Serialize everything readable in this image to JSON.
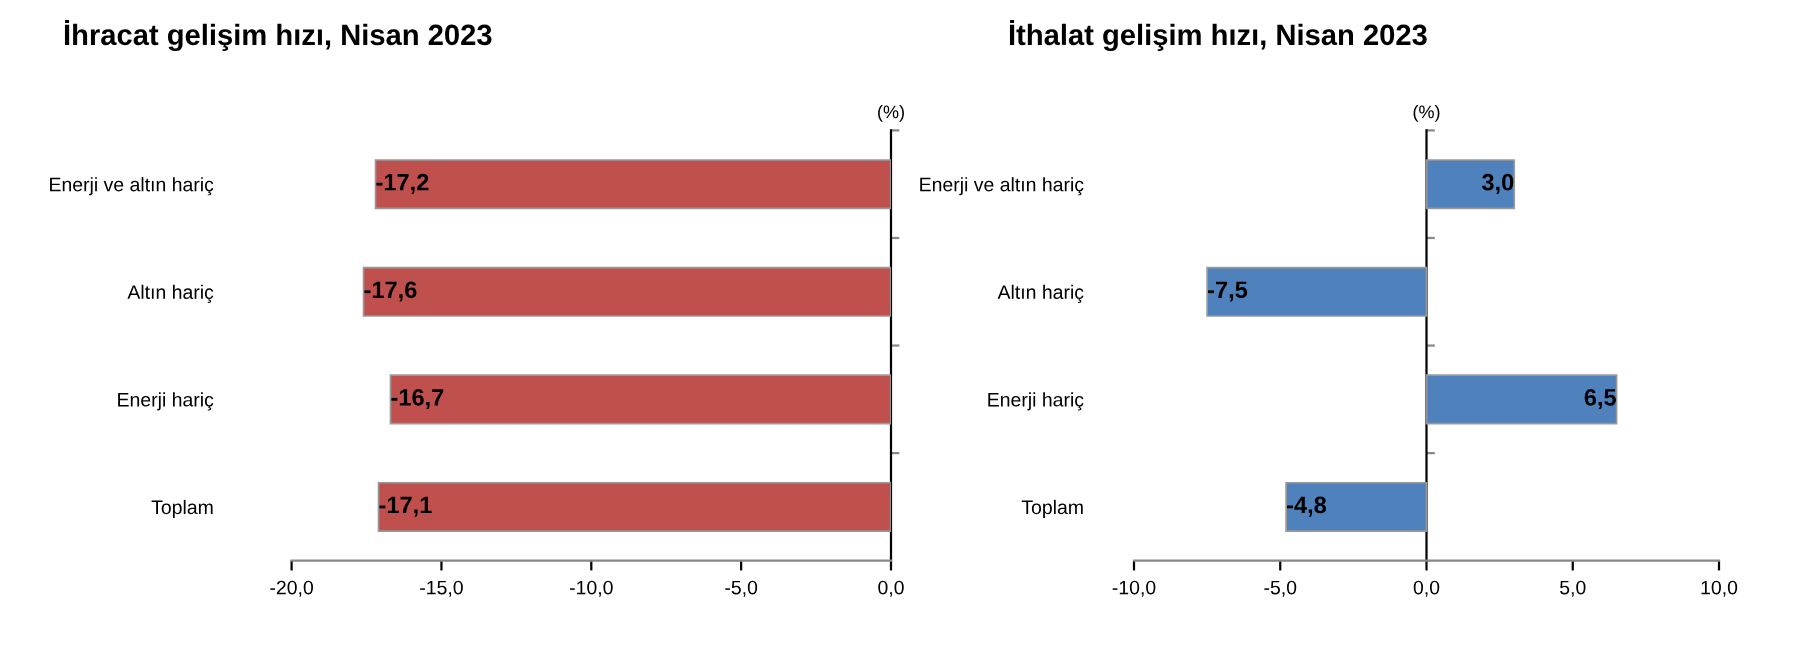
{
  "chart_data": [
    {
      "type": "bar",
      "orientation": "horizontal",
      "title": "İhracat gelişim hızı, Nisan 2023",
      "annotations": [
        "(%)"
      ],
      "categories": [
        "Enerji ve altın hariç",
        "Altın hariç",
        "Enerji hariç",
        "Toplam"
      ],
      "values": [
        -17.2,
        -17.6,
        -16.7,
        -17.1
      ],
      "value_labels": [
        "-17,2",
        "-17,6",
        "-16,7",
        "-17,1"
      ],
      "color": "#c0504d",
      "xlim": [
        -20,
        0
      ],
      "xticks": [
        {
          "value": -20,
          "label": "-20,0"
        },
        {
          "value": -15,
          "label": "-15,0"
        },
        {
          "value": -10,
          "label": "-10,0"
        },
        {
          "value": -5,
          "label": "-5,0"
        },
        {
          "value": 0,
          "label": "0,0"
        }
      ],
      "legend": false
    },
    {
      "type": "bar",
      "orientation": "horizontal",
      "title": "İthalat gelişim hızı, Nisan 2023",
      "annotations": [
        "(%)"
      ],
      "categories": [
        "Enerji ve altın hariç",
        "Altın hariç",
        "Enerji hariç",
        "Toplam"
      ],
      "values": [
        3.0,
        -7.5,
        6.5,
        -4.8
      ],
      "value_labels": [
        "3,0",
        "-7,5",
        "6,5",
        "-4,8"
      ],
      "color": "#4f81bd",
      "xlim": [
        -10,
        10
      ],
      "xticks": [
        {
          "value": -10,
          "label": "-10,0"
        },
        {
          "value": -5,
          "label": "-5,0"
        },
        {
          "value": 0,
          "label": "0,0"
        },
        {
          "value": 5,
          "label": "5,0"
        },
        {
          "value": 10,
          "label": "10,0"
        }
      ],
      "legend": false
    }
  ]
}
